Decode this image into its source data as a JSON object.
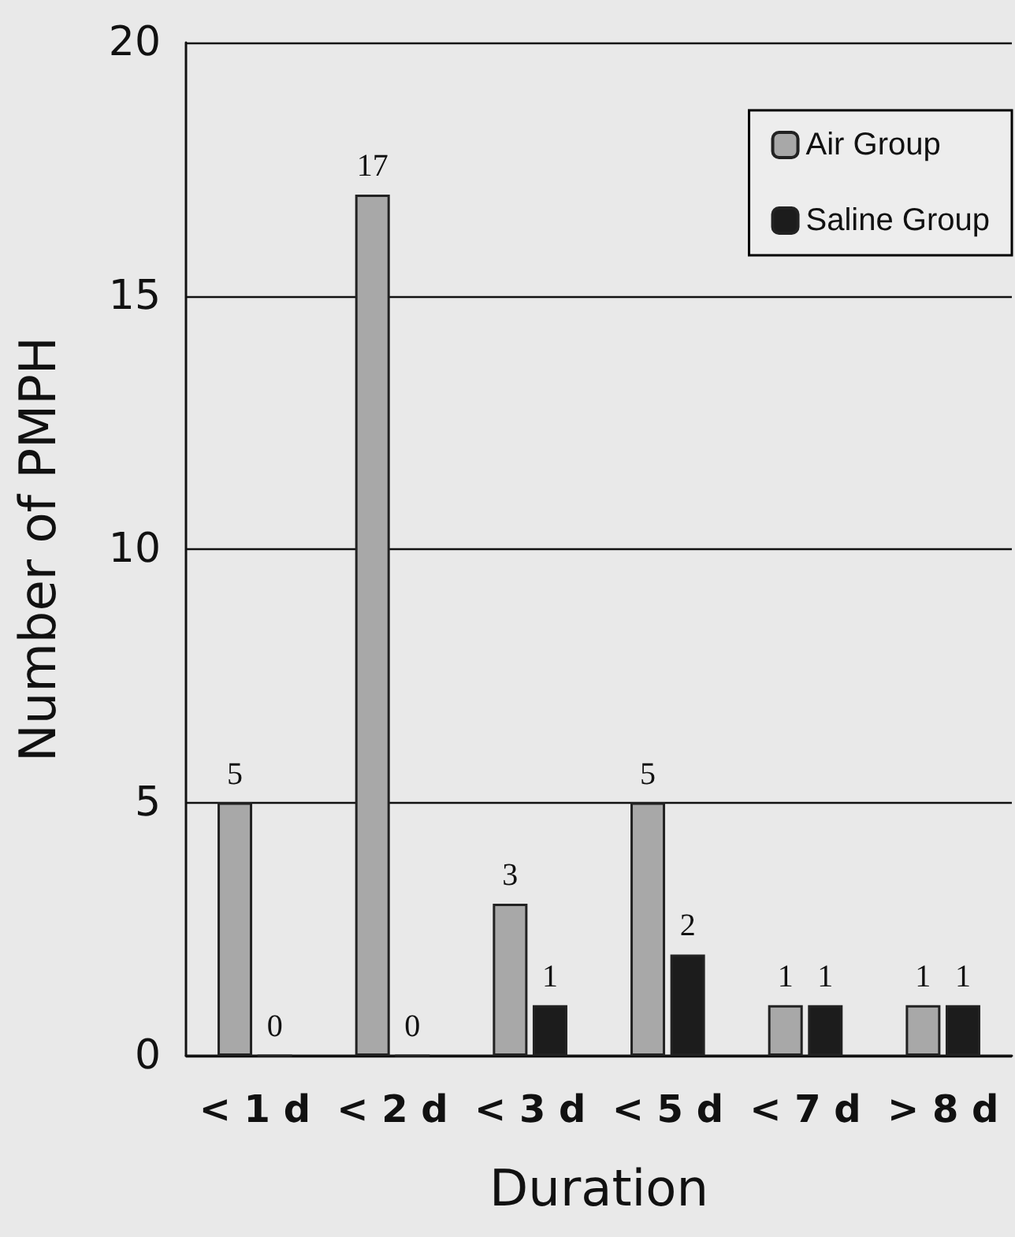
{
  "chart_data": {
    "type": "bar",
    "xlabel": "Duration",
    "ylabel": "Number of PMPH",
    "categories": [
      "< 1 d",
      "< 2 d",
      "< 3 d",
      "< 5 d",
      "< 7 d",
      "> 8 d"
    ],
    "series": [
      {
        "name": "Air Group",
        "color": "#a8a8a8",
        "values": [
          5,
          17,
          3,
          5,
          1,
          1
        ]
      },
      {
        "name": "Saline Group",
        "color": "#1c1c1c",
        "values": [
          0,
          0,
          1,
          2,
          1,
          1
        ]
      }
    ],
    "ylim": [
      0,
      20
    ],
    "yticks": [
      0,
      5,
      10,
      15,
      20
    ],
    "grid": "y",
    "legend": "top right",
    "data_labels": true
  }
}
